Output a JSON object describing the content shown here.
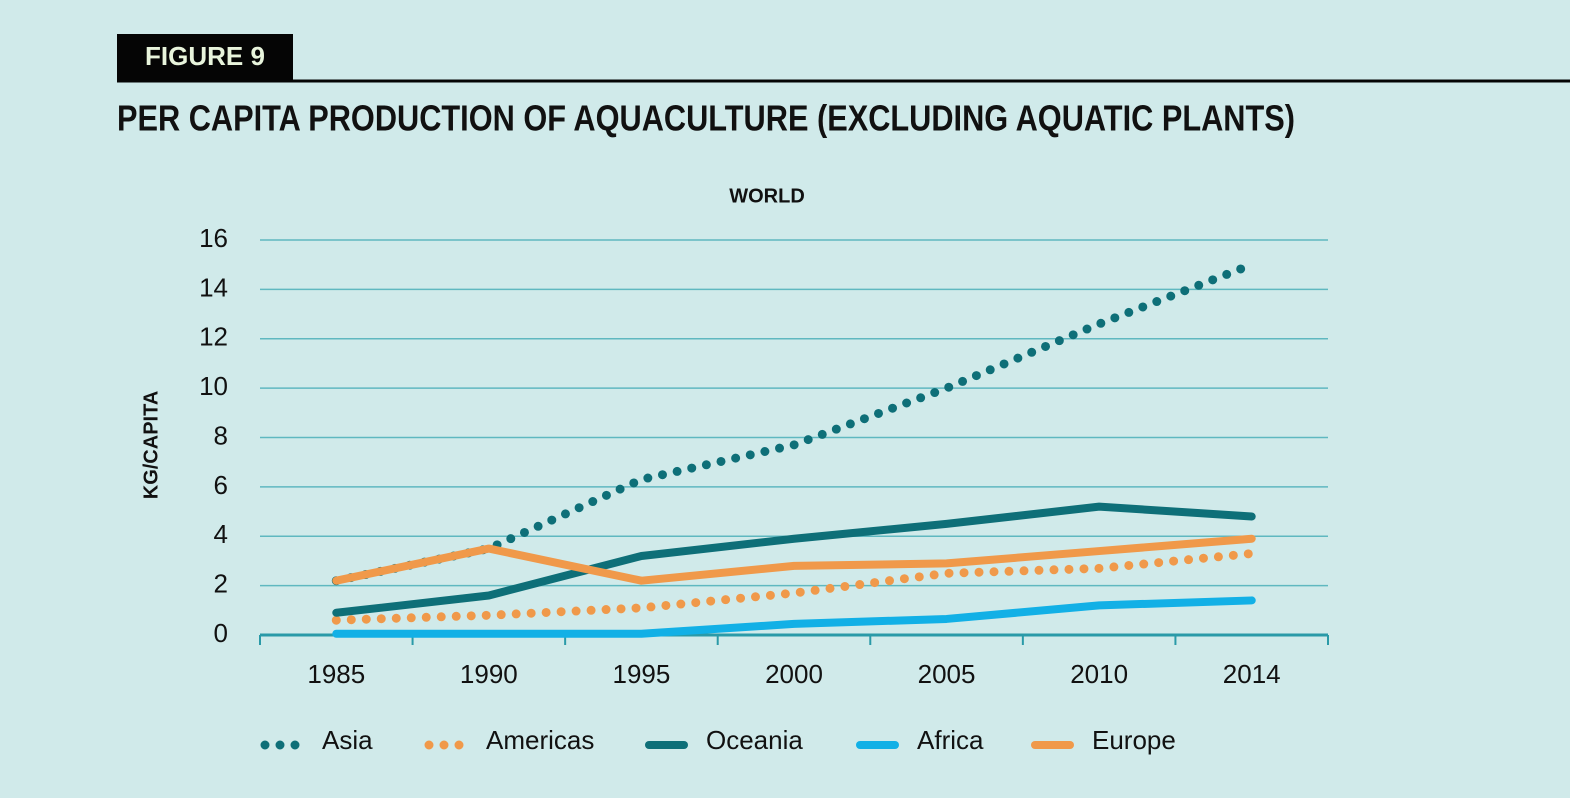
{
  "figure_label": "FIGURE 9",
  "chart_data": {
    "type": "line",
    "title": "PER CAPITA PRODUCTION OF AQUACULTURE (EXCLUDING AQUATIC PLANTS)",
    "subtitle": "WORLD",
    "y_label": "KG/CAPITA",
    "categories": [
      "1985",
      "1990",
      "1995",
      "2000",
      "2005",
      "2010",
      "2014"
    ],
    "ylim": [
      0,
      16
    ],
    "yticks": [
      0,
      2,
      4,
      6,
      8,
      10,
      12,
      14,
      16
    ],
    "grid": true,
    "series": [
      {
        "name": "Asia",
        "color": "#0e6f78",
        "style": "dotted",
        "values": [
          2.2,
          3.5,
          6.3,
          7.7,
          10.0,
          12.6,
          15.0
        ]
      },
      {
        "name": "Americas",
        "color": "#f0994a",
        "style": "dotted",
        "values": [
          0.6,
          0.8,
          1.1,
          1.7,
          2.5,
          2.7,
          3.3
        ]
      },
      {
        "name": "Oceania",
        "color": "#0e6f78",
        "style": "solid",
        "values": [
          0.9,
          1.6,
          3.2,
          3.9,
          4.5,
          5.2,
          4.8
        ]
      },
      {
        "name": "Africa",
        "color": "#12b0e6",
        "style": "solid",
        "values": [
          0.05,
          0.05,
          0.05,
          0.45,
          0.65,
          1.2,
          1.4
        ]
      },
      {
        "name": "Europe",
        "color": "#f0994a",
        "style": "solid",
        "values": [
          2.2,
          3.5,
          2.2,
          2.8,
          2.9,
          3.4,
          3.9
        ]
      }
    ]
  }
}
